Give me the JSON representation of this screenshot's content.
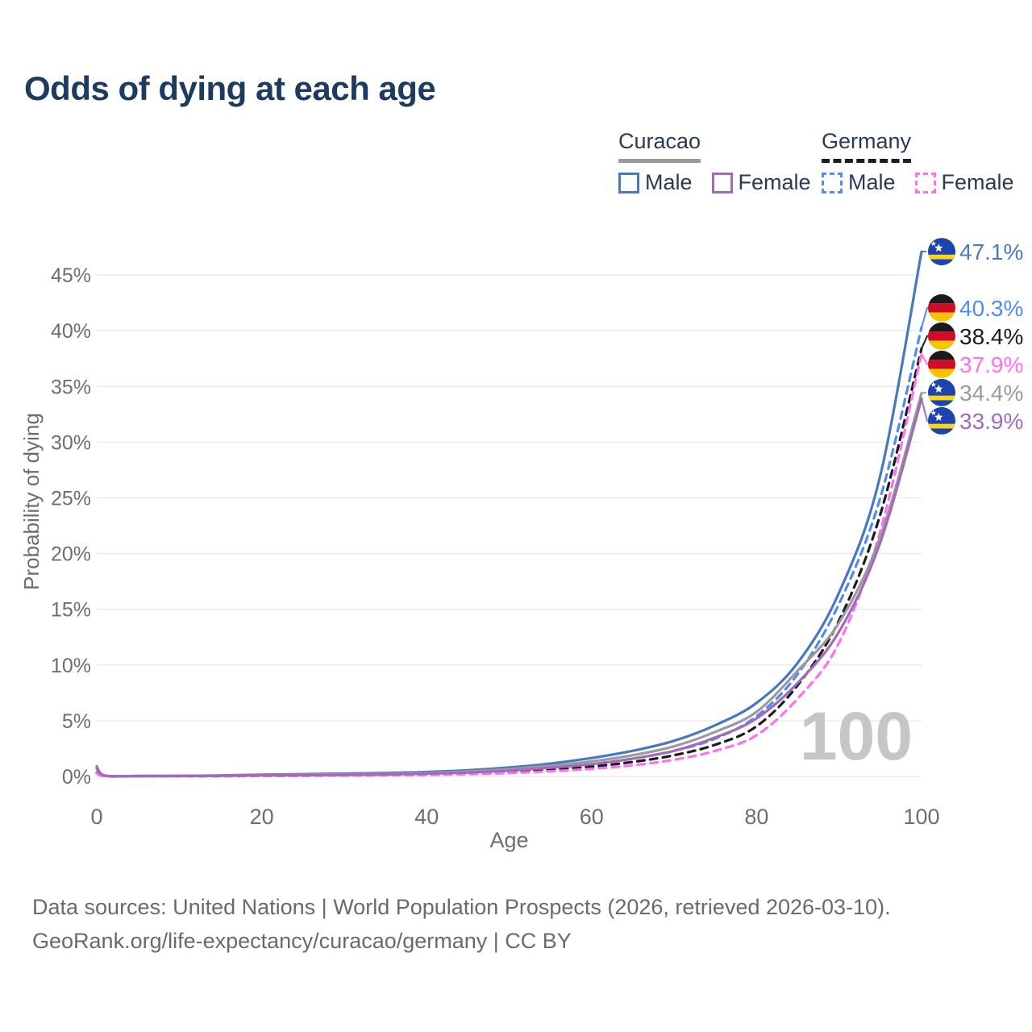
{
  "title": "Odds of dying at each age",
  "legend": {
    "groups": [
      {
        "label": "Curacao",
        "line_style": "solid",
        "underline_color": "#9a9a9a",
        "items": [
          {
            "label": "Male",
            "color": "#4878c2",
            "style": "solid"
          },
          {
            "label": "Female",
            "color": "#a369bd",
            "style": "solid"
          }
        ]
      },
      {
        "label": "Germany",
        "line_style": "dashed",
        "underline_color": "#1c1c1c",
        "items": [
          {
            "label": "Male",
            "color": "#4e8bf5",
            "style": "dashed"
          },
          {
            "label": "Female",
            "color": "#ff6ff2",
            "style": "dashed"
          }
        ]
      }
    ]
  },
  "chart_data": {
    "type": "line",
    "title": "Odds of dying at each age",
    "xlabel": "Age",
    "ylabel": "Probability of dying",
    "xlim": [
      0,
      100
    ],
    "ylim": [
      0,
      47.5
    ],
    "x_ticks": [
      0,
      20,
      40,
      60,
      80,
      100
    ],
    "y_ticks": [
      "0%",
      "5%",
      "10%",
      "15%",
      "20%",
      "25%",
      "30%",
      "35%",
      "40%",
      "45%"
    ],
    "grid": "horizontal",
    "legend_position": "top-right",
    "watermark": "100",
    "x": [
      0,
      1,
      5,
      10,
      15,
      20,
      25,
      30,
      35,
      40,
      45,
      50,
      55,
      60,
      65,
      70,
      75,
      80,
      85,
      90,
      95,
      100
    ],
    "series": [
      {
        "name": "Curacao Male",
        "country": "Curacao",
        "sex": "Male",
        "flag": "curacao",
        "style": "solid",
        "color": "#4878c2",
        "end_label": "47.1%",
        "values": [
          0.9,
          0.08,
          0.04,
          0.05,
          0.09,
          0.16,
          0.2,
          0.25,
          0.31,
          0.4,
          0.55,
          0.8,
          1.15,
          1.65,
          2.3,
          3.2,
          4.6,
          6.6,
          10.2,
          16.5,
          27.0,
          47.1
        ]
      },
      {
        "name": "Germany Male",
        "country": "Germany",
        "sex": "Male",
        "flag": "germany",
        "style": "dashed",
        "color": "#4e8bf5",
        "end_label": "40.3%",
        "values": [
          0.35,
          0.03,
          0.02,
          0.02,
          0.04,
          0.07,
          0.09,
          0.11,
          0.15,
          0.22,
          0.33,
          0.5,
          0.75,
          1.1,
          1.6,
          2.3,
          3.4,
          5.4,
          9.2,
          15.5,
          25.0,
          40.3
        ]
      },
      {
        "name": "Germany Both sexes",
        "country": "Germany",
        "sex": "Both",
        "flag": "germany",
        "style": "dashed",
        "color": "#1c1c1c",
        "end_label": "38.4%",
        "values": [
          0.3,
          0.03,
          0.01,
          0.02,
          0.03,
          0.05,
          0.07,
          0.09,
          0.12,
          0.18,
          0.26,
          0.4,
          0.6,
          0.88,
          1.3,
          1.9,
          2.85,
          4.5,
          8.2,
          14.0,
          23.5,
          38.4
        ]
      },
      {
        "name": "Germany Female",
        "country": "Germany",
        "sex": "Female",
        "flag": "germany",
        "style": "dashed",
        "color": "#ff6ff2",
        "end_label": "37.9%",
        "values": [
          0.28,
          0.02,
          0.01,
          0.01,
          0.02,
          0.04,
          0.05,
          0.07,
          0.09,
          0.13,
          0.2,
          0.3,
          0.46,
          0.68,
          1.0,
          1.5,
          2.3,
          3.7,
          7.0,
          12.0,
          22.0,
          37.9
        ]
      },
      {
        "name": "Curacao Both sexes",
        "country": "Curacao",
        "sex": "Both",
        "flag": "curacao",
        "style": "solid",
        "color": "#9b9b9b",
        "end_label": "34.4%",
        "values": [
          0.8,
          0.07,
          0.03,
          0.04,
          0.07,
          0.12,
          0.15,
          0.19,
          0.24,
          0.32,
          0.44,
          0.65,
          0.95,
          1.35,
          1.9,
          2.7,
          4.0,
          5.8,
          9.5,
          13.8,
          21.5,
          34.4
        ]
      },
      {
        "name": "Curacao Female",
        "country": "Curacao",
        "sex": "Female",
        "flag": "curacao",
        "style": "solid",
        "color": "#a369bd",
        "end_label": "33.9%",
        "values": [
          0.7,
          0.06,
          0.03,
          0.04,
          0.06,
          0.09,
          0.11,
          0.14,
          0.18,
          0.25,
          0.35,
          0.52,
          0.78,
          1.1,
          1.6,
          2.3,
          3.5,
          5.2,
          8.4,
          13.0,
          21.0,
          33.9
        ]
      }
    ],
    "flag_colors": {
      "curacao_blue": "#1d43ae",
      "curacao_yellow": "#f9d616",
      "germany_black": "#1a1a1a",
      "germany_red": "#d00c27",
      "germany_gold": "#f6c500"
    },
    "text_color": "#6e6e6e",
    "grid_color": "#eaeaee",
    "watermark_color": "#c6c6c6"
  },
  "footer": {
    "line1": "Data sources: United Nations | World Population Prospects (2026, retrieved 2026-03-10).",
    "line2": "GeoRank.org/life-expectancy/curacao/germany | CC BY"
  }
}
